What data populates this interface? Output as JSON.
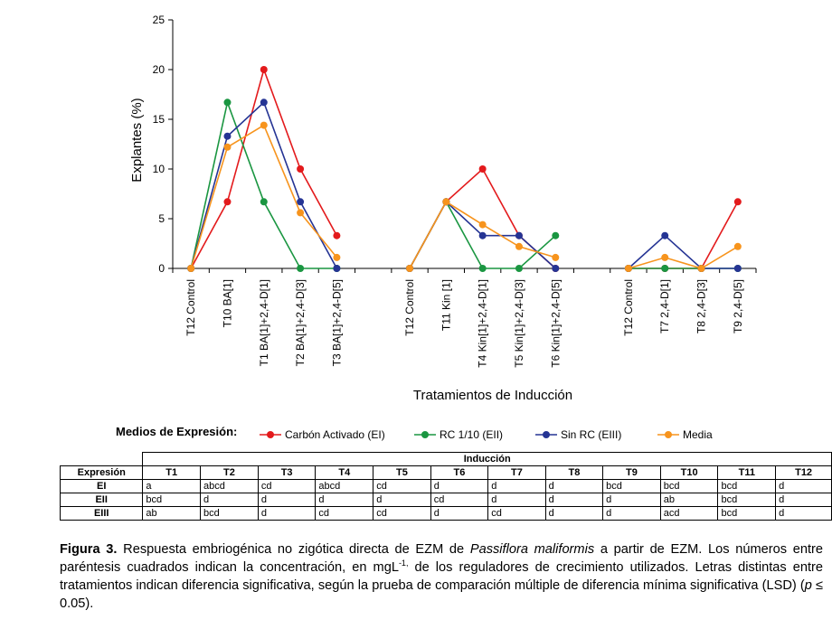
{
  "chart_data": {
    "type": "line",
    "ylabel": "Explantes (%)",
    "xlabel": "Tratamientos de Inducción",
    "ylim": [
      0,
      25
    ],
    "yticks": [
      0,
      5,
      10,
      15,
      20,
      25
    ],
    "grid": false,
    "categories": [
      "T12 Control",
      "T10 BA[1]",
      "T1 BA[1]+2,4-D[1]",
      "T2 BA[1]+2,4-D[3]",
      "T3 BA[1]+2,4-D[5]",
      "T12 Control",
      "T11 Kin [1]",
      "T4 Kin[1]+2,4-D[1]",
      "T5 Kin[1]+2,4-D[3]",
      "T6 Kin[1]+2,4-D[5]",
      "T12 Control",
      "T7 2,4-D[1]",
      "T8 2,4-D[3]",
      "T9 2,4-D[5]"
    ],
    "groups": [
      [
        0,
        1,
        2,
        3,
        4
      ],
      [
        5,
        6,
        7,
        8,
        9
      ],
      [
        10,
        11,
        12,
        13
      ]
    ],
    "legend_title": "Medios de Expresión:",
    "legend_position": "bottom",
    "series": [
      {
        "name": "Carbón Activado (EI)",
        "color": "#e31a1c",
        "values": [
          0,
          6.7,
          20,
          10,
          3.3,
          0,
          6.7,
          10,
          3.3,
          0,
          0,
          0,
          0,
          6.7
        ]
      },
      {
        "name": "RC 1/10 (EII)",
        "color": "#1a9641",
        "values": [
          0,
          16.7,
          6.7,
          0,
          0,
          0,
          6.7,
          0,
          0,
          3.3,
          0,
          0,
          0,
          0
        ]
      },
      {
        "name": "Sin RC (EIII)",
        "color": "#253494",
        "values": [
          0,
          13.3,
          16.7,
          6.7,
          0,
          0,
          6.7,
          3.3,
          3.3,
          0,
          0,
          3.3,
          0,
          0
        ]
      },
      {
        "name": "Media",
        "color": "#f7941d",
        "values": [
          0,
          12.2,
          14.4,
          5.6,
          1.1,
          0,
          6.7,
          4.4,
          2.2,
          1.1,
          0,
          1.1,
          0,
          2.2
        ]
      }
    ]
  },
  "table": {
    "group_header": "Inducción",
    "row_header": "Expresión",
    "columns": [
      "T1",
      "T2",
      "T3",
      "T4",
      "T5",
      "T6",
      "T7",
      "T8",
      "T9",
      "T10",
      "T11",
      "T12"
    ],
    "rows": [
      {
        "name": "EI",
        "values": [
          "a",
          "abcd",
          "cd",
          "abcd",
          "cd",
          "d",
          "d",
          "d",
          "bcd",
          "bcd",
          "bcd",
          "d"
        ]
      },
      {
        "name": "EII",
        "values": [
          "bcd",
          "d",
          "d",
          "d",
          "d",
          "cd",
          "d",
          "d",
          "d",
          "ab",
          "bcd",
          "d"
        ]
      },
      {
        "name": "EIII",
        "values": [
          "ab",
          "bcd",
          "d",
          "cd",
          "cd",
          "d",
          "cd",
          "d",
          "d",
          "acd",
          "bcd",
          "d"
        ]
      }
    ]
  },
  "caption": {
    "label": "Figura 3.",
    "text_1": " Respuesta embriogénica no zigótica directa de EZM de ",
    "species": "Passiflora maliformis",
    "text_2": " a partir de EZM. Los números entre paréntesis cuadrados indican la concentración, en mgL",
    "superscript": "-1,",
    "text_3": " de los reguladores de crecimiento utilizados. Letras distintas entre tratamientos indican diferencia significativa, según la prueba de comparación múltiple de diferencia mínima significativa (LSD) (",
    "p_symbol": "p",
    "text_4": " ≤ 0.05)."
  }
}
